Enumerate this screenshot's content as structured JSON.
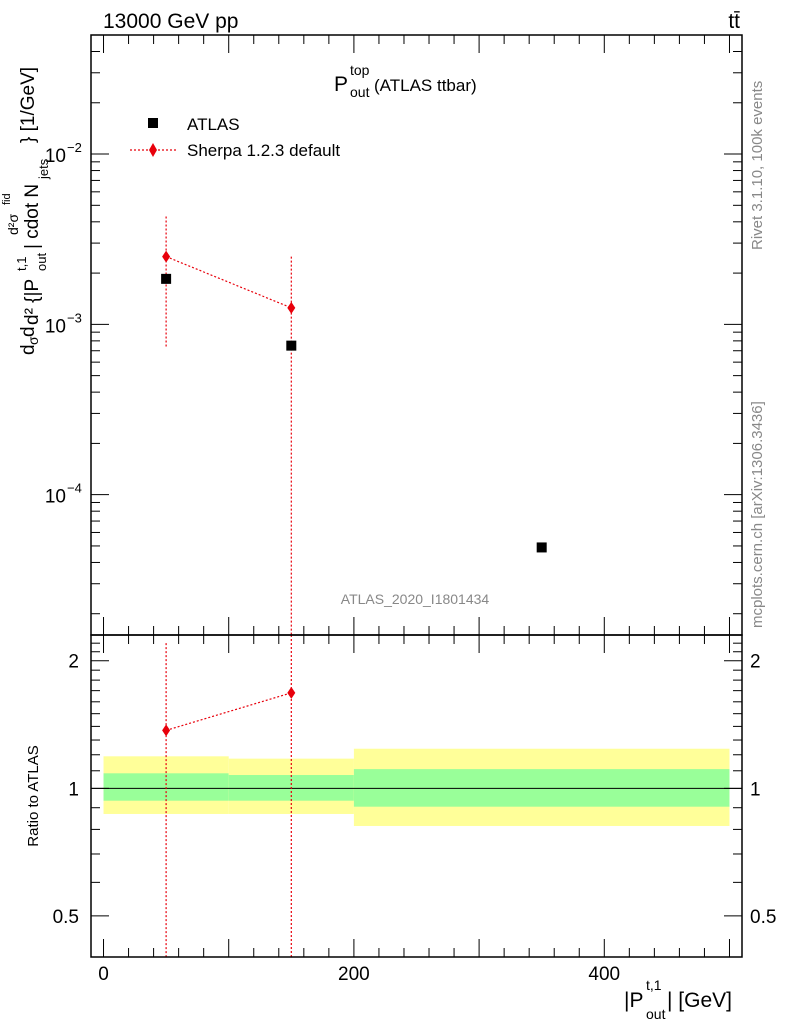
{
  "header": {
    "left": "13000 GeV pp",
    "right": "tt̄"
  },
  "plot_title": {
    "main": "P",
    "sup": "top",
    "sub": "out",
    "suffix": " (ATLAS ttbar)"
  },
  "legend": {
    "data_label": "ATLAS",
    "mc_label": "Sherpa 1.2.3 default"
  },
  "watermark": "ATLAS_2020_I1801434",
  "side_text": {
    "rivet": "Rivet 3.1.10,  100k events",
    "mcplots": "mcplots.cern.ch [arXiv:1306.3436]"
  },
  "axes": {
    "ylabel_main": "dσ/d|P_out^t,1| ... [1/GeV]",
    "ylabel_main_part_1": "d",
    "ylabel_main_part_2": "σ",
    "ylabel_main_part_3": "d",
    "ylabel_main_part_4": "d² {|P",
    "ylabel_main_part_5": "t,1",
    "ylabel_main_part_6": "out",
    "ylabel_main_part_7": "| cdot N",
    "ylabel_main_part_8": "jets",
    "ylabel_main_part_9": "} [1/GeV]",
    "ylabel_main_part_10": "d²σ",
    "ylabel_main_part_11": "fid",
    "ylabel_ratio": "Ratio to ATLAS",
    "xlabel_pre": "|P",
    "xlabel_sup": "t,1",
    "xlabel_sub": "out",
    "xlabel_post": "| [GeV]",
    "y_main_ticks": [
      {
        "value": 0.01,
        "base": "10",
        "exp": "−2"
      },
      {
        "value": 0.001,
        "base": "10",
        "exp": "−3"
      },
      {
        "value": 0.0001,
        "base": "10",
        "exp": "−4"
      }
    ],
    "y_ratio_ticks": [
      "2",
      "1",
      "0.5"
    ],
    "x_ticks": [
      "0",
      "200",
      "400"
    ]
  },
  "chart_data": {
    "type": "scatter",
    "xlim": [
      -10,
      510
    ],
    "ylim_main": [
      1.5e-05,
      0.05
    ],
    "log_y_main": true,
    "ylim_ratio": [
      0.4,
      2.3
    ],
    "log_y_ratio": true,
    "bins": [
      [
        0,
        100
      ],
      [
        100,
        200
      ],
      [
        200,
        500
      ]
    ],
    "series": [
      {
        "name": "ATLAS",
        "x": [
          50,
          150,
          350
        ],
        "y": [
          0.00185,
          0.00075,
          4.9e-05
        ],
        "ratio_band_inner": [
          [
            0.935,
            1.085
          ],
          [
            0.935,
            1.075
          ],
          [
            0.905,
            1.11
          ]
        ],
        "ratio_band_outer": [
          [
            0.87,
            1.19
          ],
          [
            0.87,
            1.175
          ],
          [
            0.815,
            1.24
          ]
        ]
      },
      {
        "name": "Sherpa 1.2.3 default",
        "x": [
          50,
          150
        ],
        "y": [
          0.0025,
          0.00125
        ],
        "y_low": [
          0.00073,
          1e-07
        ],
        "y_high": [
          0.0043,
          0.0025
        ],
        "ratio": [
          1.37,
          1.68
        ],
        "ratio_low": [
          0.1,
          0.1
        ],
        "ratio_high": [
          2.2,
          3.0
        ]
      }
    ]
  },
  "colors": {
    "data": "#000000",
    "mc": "#e8000b",
    "band_inner": "#99ff99",
    "band_outer": "#ffff99",
    "watermark": "#888888"
  }
}
